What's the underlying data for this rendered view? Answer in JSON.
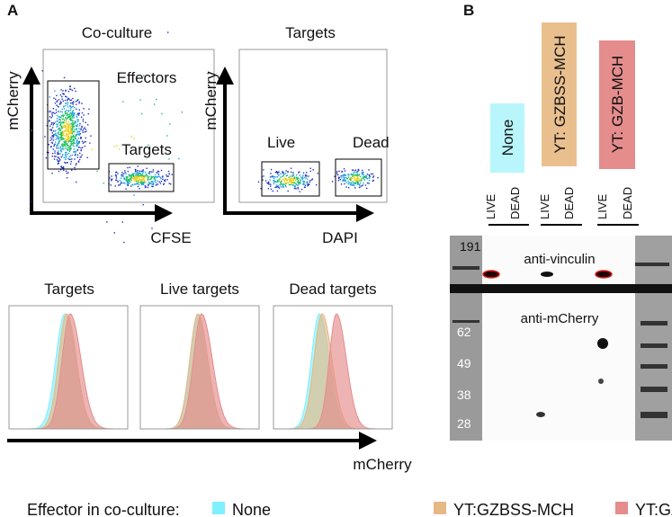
{
  "panel_a": {
    "label": "A",
    "flow_plots": [
      {
        "title": "Co-culture",
        "y_label": "mCherry",
        "x_label": "CFSE",
        "gates": [
          "Effectors",
          "Targets"
        ]
      },
      {
        "title": "Targets",
        "y_label": "mCherry",
        "x_label": "DAPI",
        "gates": [
          "Live",
          "Dead"
        ]
      }
    ],
    "histograms": {
      "titles": [
        "Targets",
        "Live targets",
        "Dead targets"
      ],
      "x_label": "mCherry"
    }
  },
  "panel_b": {
    "label": "B",
    "groups": [
      "None",
      "YT: GZBSS-MCH",
      "YT: GZB-MCH"
    ],
    "lanes": [
      "LIVE",
      "DEAD",
      "LIVE",
      "DEAD",
      "LIVE",
      "DEAD"
    ],
    "markers": [
      "191",
      "62",
      "49",
      "38",
      "28"
    ],
    "probes": [
      "anti-vinculin",
      "anti-mCherry"
    ]
  },
  "legend": {
    "title": "Effector in co-culture:",
    "items": [
      {
        "name": "None",
        "color": "#7ff0ff"
      },
      {
        "name": "YT:GZBSS-MCH",
        "color": "#e6b885"
      },
      {
        "name": "YT:GZB-MCH",
        "color": "#e58c8c"
      }
    ]
  }
}
